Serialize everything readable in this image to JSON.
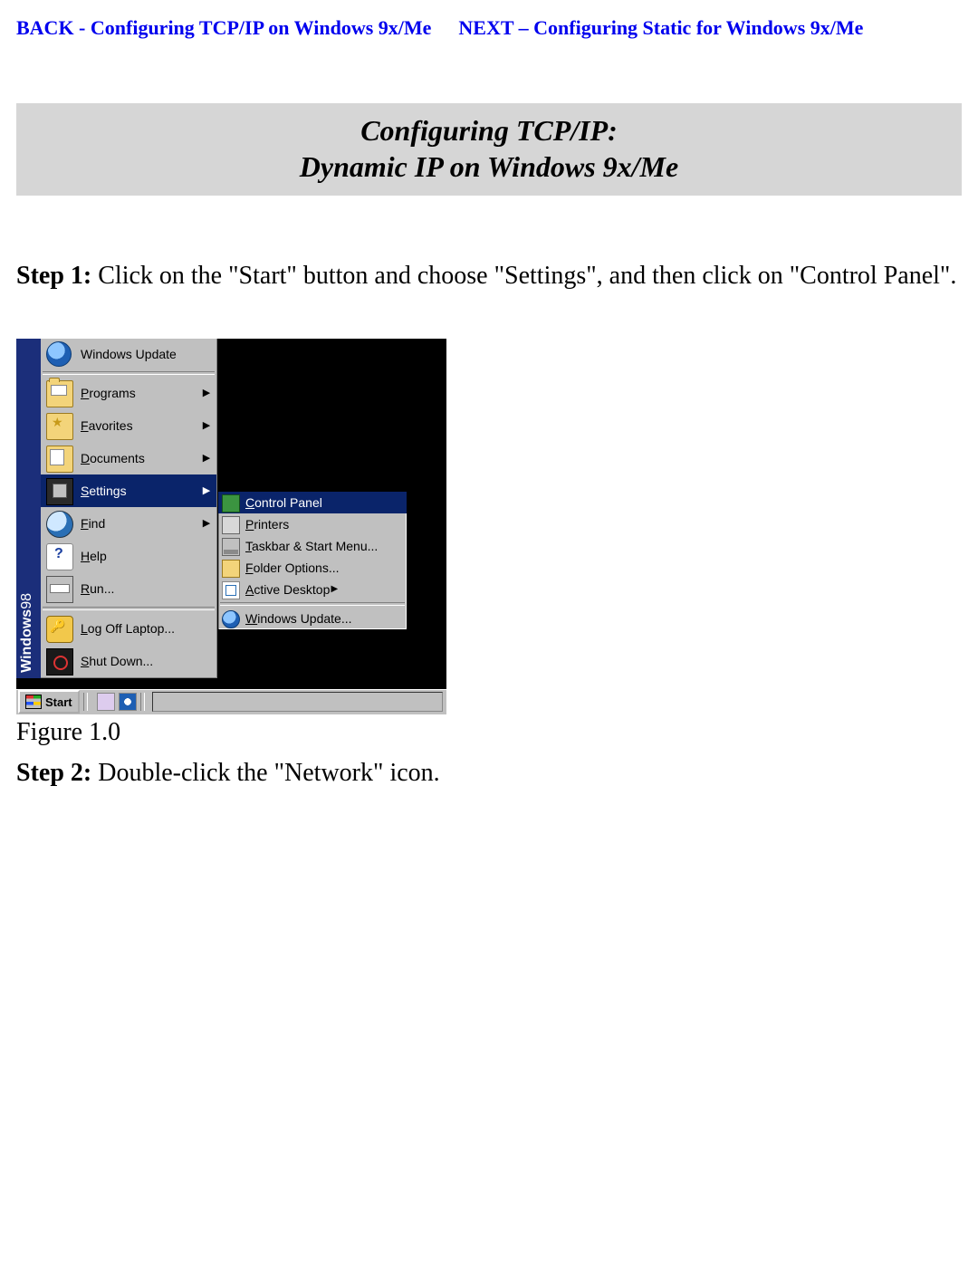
{
  "nav": {
    "back": "BACK - Configuring TCP/IP on Windows 9x/Me",
    "next": "NEXT – Configuring Static for Windows 9x/Me"
  },
  "title": {
    "line1": "Configuring TCP/IP:",
    "line2": "Dynamic IP on Windows 9x/Me"
  },
  "steps": {
    "s1_label": "Step 1:",
    "s1_text": " Click on the \"Start\" button and choose \"Settings\", and then click on \"Control Panel\".",
    "s2_label": "Step 2:",
    "s2_text": "  Double-click the \"Network\" icon."
  },
  "figure": {
    "caption": "Figure 1.0"
  },
  "screenshot": {
    "stripe": {
      "product": "Windows",
      "version": "98"
    },
    "menu": [
      {
        "label": "Windows Update",
        "arrow": false
      },
      {
        "label_pre": "P",
        "label_rest": "rograms",
        "arrow": true
      },
      {
        "label_pre": "F",
        "label_rest": "avorites",
        "arrow": true
      },
      {
        "label_pre": "D",
        "label_rest": "ocuments",
        "arrow": true
      },
      {
        "label_pre": "S",
        "label_rest": "ettings",
        "arrow": true,
        "selected": true
      },
      {
        "label_pre": "F",
        "label_rest": "ind",
        "arrow": true
      },
      {
        "label_pre": "H",
        "label_rest": "elp",
        "arrow": false
      },
      {
        "label_pre": "R",
        "label_rest": "un...",
        "arrow": false
      },
      {
        "label_pre": "L",
        "label_rest": "og Off Laptop...",
        "arrow": false
      },
      {
        "label_pre": "S",
        "label_rest": "hut Down...",
        "arrow": false
      }
    ],
    "submenu": [
      {
        "label_pre": "C",
        "label_rest": "ontrol Panel",
        "selected": true
      },
      {
        "label_pre": "P",
        "label_rest": "rinters"
      },
      {
        "label_pre": "T",
        "label_rest": "askbar & Start Menu..."
      },
      {
        "label_pre": "F",
        "label_rest": "older Options..."
      },
      {
        "label_pre": "A",
        "label_rest": "ctive Desktop",
        "arrow": true
      },
      {
        "label_pre": "W",
        "label_rest": "indows Update..."
      }
    ],
    "taskbar": {
      "start": "Start"
    }
  },
  "colors": {
    "link": "#0000ee",
    "title_bg": "#d6d6d6",
    "selection": "#0a246a",
    "win_stripe": "#1b2e7a",
    "ui_face": "#c0c0c0",
    "desktop_black": "#000000"
  }
}
